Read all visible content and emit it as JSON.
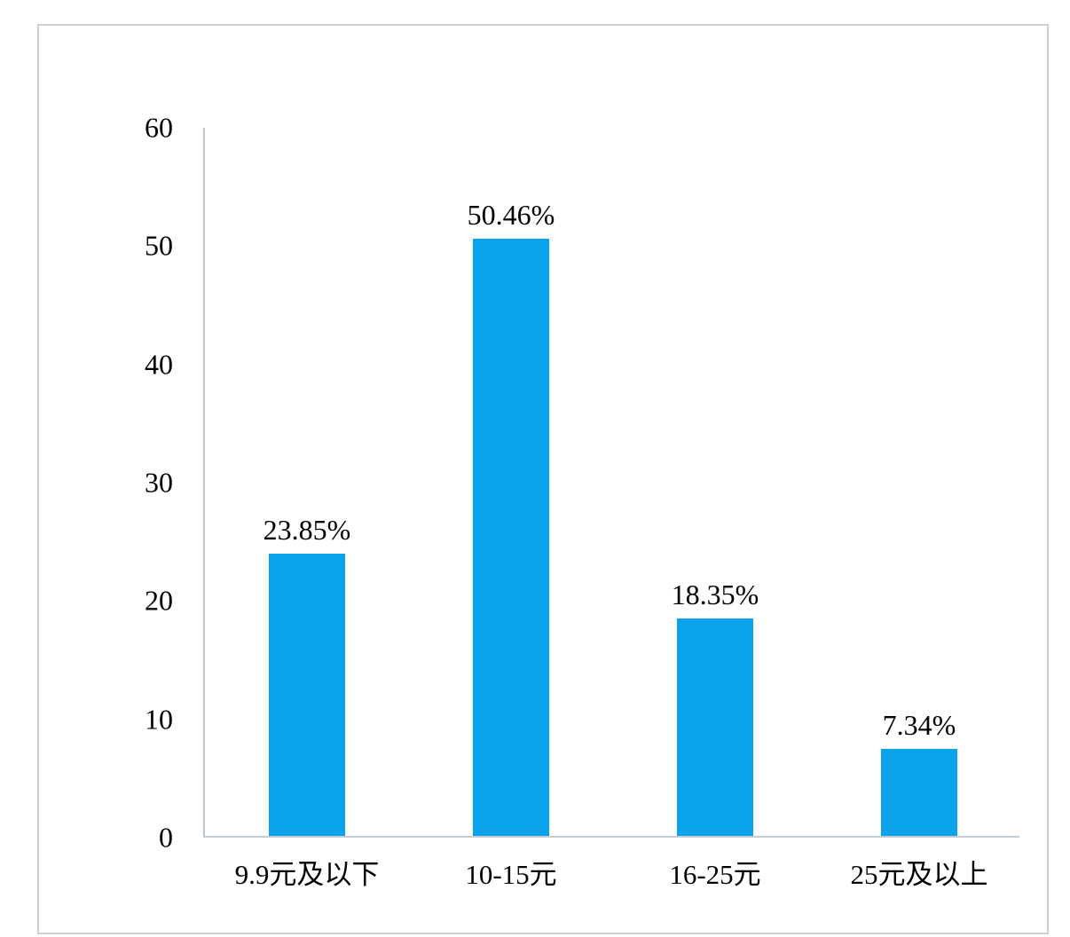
{
  "chart_data": {
    "type": "bar",
    "title": "",
    "xlabel": "",
    "ylabel": "",
    "categories": [
      "9.9元及以下",
      "10-15元",
      "16-25元",
      "25元及以上"
    ],
    "values": [
      23.85,
      50.46,
      18.35,
      7.34
    ],
    "data_labels": [
      "23.85%",
      "50.46%",
      "18.35%",
      "7.34%"
    ],
    "ylim": [
      0,
      60
    ],
    "yticks": [
      0,
      10,
      20,
      30,
      40,
      50,
      60
    ],
    "grid": false,
    "legend": false,
    "bar_color": "#0aa2e8",
    "axis_color": "#bfccd6",
    "text_color": "#000000"
  }
}
